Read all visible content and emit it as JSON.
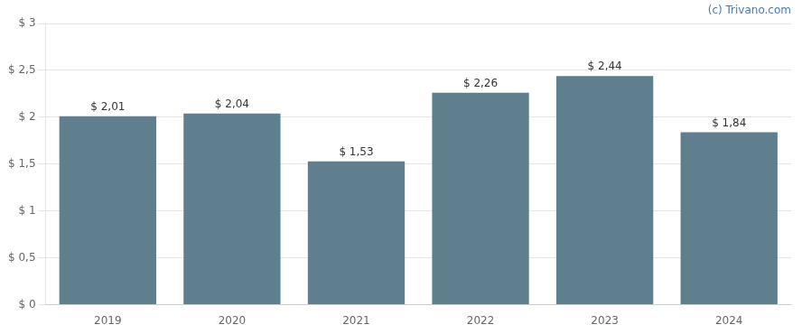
{
  "chart_data": {
    "type": "bar",
    "categories": [
      "2019",
      "2020",
      "2021",
      "2022",
      "2023",
      "2024"
    ],
    "values": [
      2.01,
      2.04,
      1.53,
      2.26,
      2.44,
      1.84
    ],
    "value_labels": [
      "$ 2,01",
      "$ 2,04",
      "$ 1,53",
      "$ 2,26",
      "$ 2,44",
      "$ 1,84"
    ],
    "color": "#5f7f8f",
    "ylim": [
      0,
      3.0
    ],
    "yticks": [
      {
        "value": 0,
        "label": "$ 0"
      },
      {
        "value": 0.5,
        "label": "$ 0,5"
      },
      {
        "value": 1.0,
        "label": "$ 1"
      },
      {
        "value": 1.5,
        "label": "$ 1,5"
      },
      {
        "value": 2.0,
        "label": "$ 2"
      },
      {
        "value": 2.5,
        "label": "$ 2,5"
      },
      {
        "value": 3.0,
        "label": "$ 3"
      }
    ],
    "grid": true,
    "data_labels": true,
    "annotations": [
      {
        "text": "(c) Trivano.com",
        "color": "#4a7ab5"
      }
    ]
  }
}
